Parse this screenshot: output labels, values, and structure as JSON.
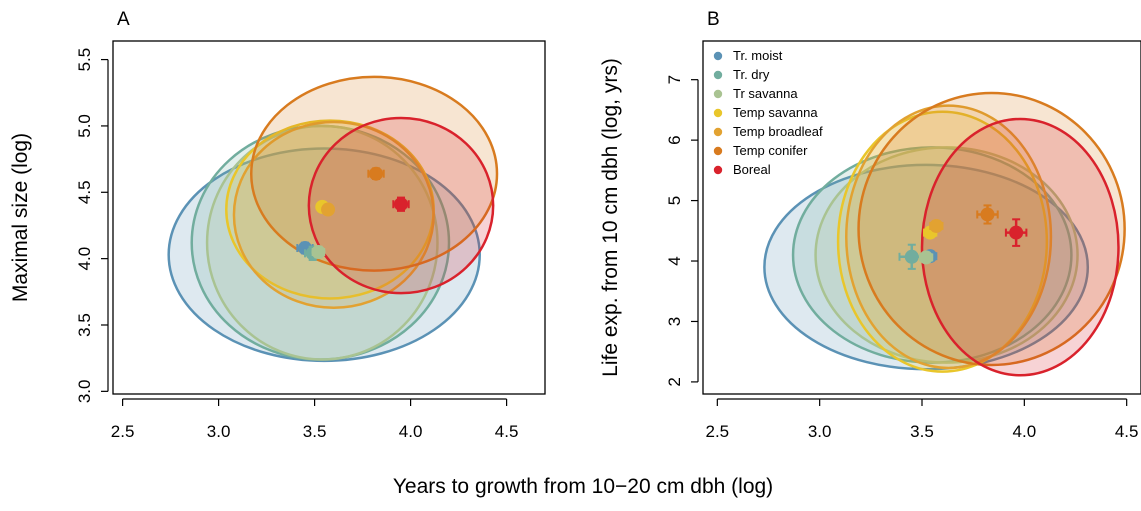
{
  "figure": {
    "shared_xlabel": "Years to growth from 10−20 cm dbh (log)"
  },
  "biome_colors": {
    "Tr. moist": "#5b92b5",
    "Tr. dry": "#71ad9e",
    "Tr savanna": "#a9c392",
    "Temp savanna": "#e9c62b",
    "Temp broadleaf": "#e2a231",
    "Temp conifer": "#d87b1f",
    "Boreal": "#d9222c"
  },
  "chart_data": [
    {
      "type": "scatter",
      "panel_label": "A",
      "title": "",
      "xlabel": "",
      "ylabel": "Maximal size (log)",
      "xlim": [
        2.45,
        4.7
      ],
      "ylim": [
        2.98,
        5.64
      ],
      "xticks": [
        "2.5",
        "3.0",
        "3.5",
        "4.0",
        "4.5"
      ],
      "yticks": [
        "3.0",
        "3.5",
        "4.0",
        "4.5",
        "5.0",
        "5.5"
      ],
      "grid": false,
      "legend": null,
      "series": [
        {
          "name": "Tr. moist",
          "x": 3.45,
          "y": 4.08,
          "xerr": 0.04,
          "yerr": 0.04,
          "ellipse": {
            "cx": 3.55,
            "cy": 4.03,
            "rx": 0.81,
            "ry": 0.8
          }
        },
        {
          "name": "Tr. dry",
          "x": 3.49,
          "y": 4.04,
          "xerr": 0.04,
          "yerr": 0.05,
          "ellipse": {
            "cx": 3.53,
            "cy": 4.12,
            "rx": 0.67,
            "ry": 0.88
          }
        },
        {
          "name": "Tr savanna",
          "x": 3.52,
          "y": 4.05,
          "xerr": 0.03,
          "yerr": 0.04,
          "ellipse": {
            "cx": 3.54,
            "cy": 4.12,
            "rx": 0.6,
            "ry": 0.88
          }
        },
        {
          "name": "Temp savanna",
          "x": 3.54,
          "y": 4.39,
          "xerr": 0.02,
          "yerr": 0.03,
          "ellipse": {
            "cx": 3.58,
            "cy": 4.37,
            "rx": 0.54,
            "ry": 0.67
          }
        },
        {
          "name": "Temp broadleaf",
          "x": 3.57,
          "y": 4.37,
          "xerr": 0.02,
          "yerr": 0.03,
          "ellipse": {
            "cx": 3.6,
            "cy": 4.33,
            "rx": 0.52,
            "ry": 0.7
          }
        },
        {
          "name": "Temp conifer",
          "x": 3.82,
          "y": 4.64,
          "xerr": 0.04,
          "yerr": 0.04,
          "ellipse": {
            "cx": 3.81,
            "cy": 4.64,
            "rx": 0.64,
            "ry": 0.73
          }
        },
        {
          "name": "Boreal",
          "x": 3.95,
          "y": 4.41,
          "xerr": 0.04,
          "yerr": 0.05,
          "ellipse": {
            "cx": 3.95,
            "cy": 4.4,
            "rx": 0.48,
            "ry": 0.66
          }
        }
      ]
    },
    {
      "type": "scatter",
      "panel_label": "B",
      "title": "",
      "xlabel": "",
      "ylabel": "Life exp. from 10 cm dbh (log, yrs)",
      "xlim": [
        2.43,
        4.57
      ],
      "ylim": [
        1.8,
        7.64
      ],
      "xticks": [
        "2.5",
        "3.0",
        "3.5",
        "4.0",
        "4.5"
      ],
      "yticks": [
        "2",
        "3",
        "4",
        "5",
        "6",
        "7"
      ],
      "grid": false,
      "legend": "top-left",
      "series": [
        {
          "name": "Tr. moist",
          "x": 3.54,
          "y": 4.08,
          "xerr": 0.03,
          "yerr": 0.06,
          "ellipse": {
            "cx": 3.52,
            "cy": 3.9,
            "rx": 0.79,
            "ry": 1.69
          }
        },
        {
          "name": "Tr. dry",
          "x": 3.45,
          "y": 4.07,
          "xerr": 0.06,
          "yerr": 0.2,
          "ellipse": {
            "cx": 3.55,
            "cy": 4.1,
            "rx": 0.68,
            "ry": 1.78
          }
        },
        {
          "name": "Tr savanna",
          "x": 3.52,
          "y": 4.06,
          "xerr": 0.03,
          "yerr": 0.06,
          "ellipse": {
            "cx": 3.62,
            "cy": 4.1,
            "rx": 0.64,
            "ry": 1.78
          }
        },
        {
          "name": "Temp savanna",
          "x": 3.54,
          "y": 4.47,
          "xerr": 0.03,
          "yerr": 0.08,
          "ellipse": {
            "cx": 3.6,
            "cy": 4.32,
            "rx": 0.51,
            "ry": 2.15
          }
        },
        {
          "name": "Temp broadleaf",
          "x": 3.57,
          "y": 4.58,
          "xerr": 0.03,
          "yerr": 0.08,
          "ellipse": {
            "cx": 3.63,
            "cy": 4.4,
            "rx": 0.5,
            "ry": 2.17
          }
        },
        {
          "name": "Temp conifer",
          "x": 3.82,
          "y": 4.77,
          "xerr": 0.05,
          "yerr": 0.15,
          "ellipse": {
            "cx": 3.84,
            "cy": 4.53,
            "rx": 0.65,
            "ry": 2.25
          }
        },
        {
          "name": "Boreal",
          "x": 3.96,
          "y": 4.47,
          "xerr": 0.05,
          "yerr": 0.22,
          "ellipse": {
            "cx": 3.98,
            "cy": 4.23,
            "rx": 0.48,
            "ry": 2.12
          }
        }
      ]
    }
  ]
}
